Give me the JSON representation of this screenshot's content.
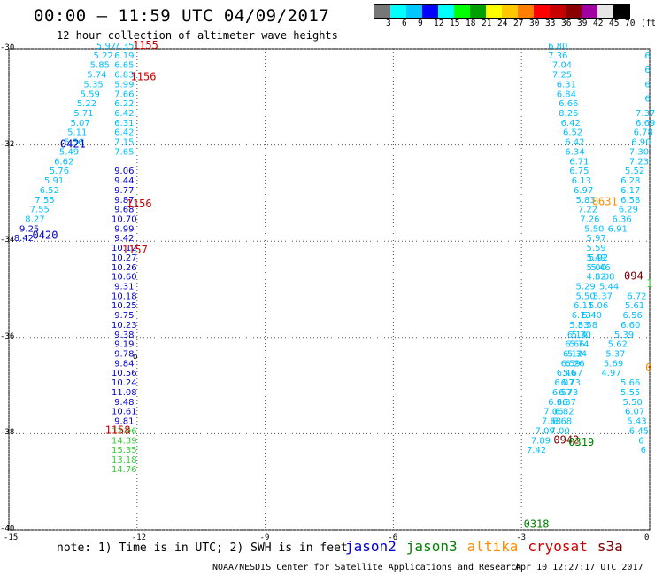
{
  "title": "00:00 – 11:59 UTC 04/09/2017",
  "subtitle": "12 hour collection of altimeter wave heights",
  "color_scale": {
    "labels": [
      "3",
      "6",
      "9",
      "12",
      "15",
      "18",
      "21",
      "24",
      "27",
      "30",
      "33",
      "36",
      "39",
      "42",
      "45",
      "70",
      "(ft)"
    ],
    "colors": [
      "#777777",
      "#00ffff",
      "#00c8ff",
      "#0000ff",
      "#00ffff",
      "#00ff00",
      "#00a000",
      "#ffff00",
      "#ffc800",
      "#ff8000",
      "#ff0000",
      "#c80000",
      "#8b0000",
      "#a000a0",
      "#e6e6e6",
      "#000000"
    ]
  },
  "axes": {
    "x_ticks": [
      "-15",
      "-12",
      "-9",
      "-6",
      "-3",
      "0"
    ],
    "y_ticks": [
      "-30",
      "-32",
      "-34",
      "-36",
      "-38",
      "-40"
    ]
  },
  "note": "note: 1) Time is in UTC; 2) SWH is in feet",
  "satellites": [
    {
      "name": "jason2",
      "color": "#0000cc"
    },
    {
      "name": "jason3",
      "color": "#008000"
    },
    {
      "name": "altika",
      "color": "#ff8c00"
    },
    {
      "name": "cryosat",
      "color": "#cc0000"
    },
    {
      "name": "s3a",
      "color": "#800000"
    }
  ],
  "footer_left": "NOAA/NESDIS Center for Satellite Applications and Research",
  "footer_right": "Apr 10 12:27:17 UTC 2017",
  "chart_data": {
    "type": "scatter",
    "title": "00:00 – 11:59 UTC 04/09/2017",
    "subtitle": "12 hour collection of altimeter wave heights",
    "xlim": [
      -15,
      0
    ],
    "ylim": [
      -40,
      -30
    ],
    "grid": true,
    "colors": {
      "cyan": "#00bfff",
      "blue": "#0000cc",
      "green": "#33cc33",
      "red": "#cc0000",
      "darkred": "#800000",
      "orange": "#ff8c00",
      "darkgreen": "#008000",
      "black": "#000000"
    },
    "times": [
      {
        "label": "1155",
        "x": -12.1,
        "y": -30.0,
        "color": "red"
      },
      {
        "label": "1156",
        "x": -12.15,
        "y": -30.65,
        "color": "red"
      },
      {
        "label": "0421",
        "x": -13.8,
        "y": -32.05,
        "color": "blue"
      },
      {
        "label": "1156",
        "x": -12.25,
        "y": -33.3,
        "color": "red"
      },
      {
        "label": "0420",
        "x": -14.45,
        "y": -33.95,
        "color": "blue"
      },
      {
        "label": "1157",
        "x": -12.35,
        "y": -34.25,
        "color": "red"
      },
      {
        "label": "1158",
        "x": -12.75,
        "y": -38.0,
        "color": "red"
      },
      {
        "label": "0631",
        "x": -1.35,
        "y": -33.25,
        "color": "orange"
      },
      {
        "label": "094",
        "x": -0.6,
        "y": -34.8,
        "color": "darkred"
      },
      {
        "label": "0",
        "x": -0.1,
        "y": -36.7,
        "color": "orange"
      },
      {
        "label": "0942",
        "x": -2.25,
        "y": -38.2,
        "color": "darkred"
      },
      {
        "label": "0319",
        "x": -1.9,
        "y": -38.25,
        "color": "darkgreen"
      },
      {
        "label": "0318",
        "x": -2.95,
        "y": -39.95,
        "color": "darkgreen"
      },
      {
        "label": "1",
        "x": -0.08,
        "y": -34.95,
        "color": "green"
      }
    ],
    "tracks": [
      {
        "name": "track-a",
        "color": "cyan",
        "points": [
          {
            "x": -12.72,
            "y": -30.0,
            "v": "5.97"
          },
          {
            "x": -12.79,
            "y": -30.2,
            "v": "5.22"
          },
          {
            "x": -12.87,
            "y": -30.4,
            "v": "5.85"
          },
          {
            "x": -12.94,
            "y": -30.6,
            "v": "5.74"
          },
          {
            "x": -13.02,
            "y": -30.8,
            "v": "5.35"
          },
          {
            "x": -13.1,
            "y": -31.0,
            "v": "5.59"
          },
          {
            "x": -13.18,
            "y": -31.2,
            "v": "5.22"
          },
          {
            "x": -13.25,
            "y": -31.4,
            "v": "5.71"
          },
          {
            "x": -13.33,
            "y": -31.6,
            "v": "5.07"
          },
          {
            "x": -13.4,
            "y": -31.8,
            "v": "5.11"
          },
          {
            "x": -13.48,
            "y": -32.0,
            "v": "5.56"
          },
          {
            "x": -13.59,
            "y": -32.2,
            "v": "5.49"
          },
          {
            "x": -13.71,
            "y": -32.4,
            "v": "6.62"
          },
          {
            "x": -13.82,
            "y": -32.6,
            "v": "5.76"
          },
          {
            "x": -13.94,
            "y": -32.8,
            "v": "5.91"
          },
          {
            "x": -14.05,
            "y": -33.0,
            "v": "6.52"
          },
          {
            "x": -14.16,
            "y": -33.2,
            "v": "7.55"
          },
          {
            "x": -14.28,
            "y": -33.4,
            "v": "7.55"
          },
          {
            "x": -14.39,
            "y": -33.6,
            "v": "8.27"
          }
        ]
      },
      {
        "name": "track-a-blue",
        "color": "blue",
        "points": [
          {
            "x": -14.52,
            "y": -33.8,
            "v": "9.25"
          },
          {
            "x": -14.65,
            "y": -34.0,
            "v": "8.42"
          }
        ]
      },
      {
        "name": "track-b",
        "color": "cyan",
        "points": [
          {
            "x": -12.3,
            "y": -30.0,
            "v": "7.35"
          },
          {
            "x": -12.3,
            "y": -30.2,
            "v": "6.19"
          },
          {
            "x": -12.3,
            "y": -30.4,
            "v": "6.65"
          },
          {
            "x": -12.3,
            "y": -30.6,
            "v": "6.83"
          },
          {
            "x": -12.3,
            "y": -30.8,
            "v": "5.99"
          },
          {
            "x": -12.3,
            "y": -31.0,
            "v": "7.66"
          },
          {
            "x": -12.3,
            "y": -31.2,
            "v": "6.22"
          },
          {
            "x": -12.3,
            "y": -31.4,
            "v": "6.42"
          },
          {
            "x": -12.3,
            "y": -31.6,
            "v": "6.31"
          },
          {
            "x": -12.3,
            "y": -31.8,
            "v": "6.42"
          },
          {
            "x": -12.3,
            "y": -32.0,
            "v": "7.15"
          },
          {
            "x": -12.3,
            "y": -32.2,
            "v": "7.65"
          }
        ]
      },
      {
        "name": "track-b-blue",
        "color": "blue",
        "points": [
          {
            "x": -12.3,
            "y": -32.6,
            "v": "9.06"
          },
          {
            "x": -12.3,
            "y": -32.8,
            "v": "9.44"
          },
          {
            "x": -12.3,
            "y": -33.0,
            "v": "9.77"
          },
          {
            "x": -12.3,
            "y": -33.2,
            "v": "9.87"
          },
          {
            "x": -12.3,
            "y": -33.4,
            "v": "9.68"
          },
          {
            "x": -12.3,
            "y": -33.6,
            "v": "10.70"
          },
          {
            "x": -12.3,
            "y": -33.8,
            "v": "9.99"
          },
          {
            "x": -12.3,
            "y": -34.0,
            "v": "9.42"
          },
          {
            "x": -12.3,
            "y": -34.2,
            "v": "10.12"
          },
          {
            "x": -12.3,
            "y": -34.4,
            "v": "10.27"
          },
          {
            "x": -12.3,
            "y": -34.6,
            "v": "10.26"
          },
          {
            "x": -12.3,
            "y": -34.8,
            "v": "10.60"
          },
          {
            "x": -12.3,
            "y": -35.0,
            "v": "9.31"
          },
          {
            "x": -12.3,
            "y": -35.2,
            "v": "10.18"
          },
          {
            "x": -12.3,
            "y": -35.4,
            "v": "10.25"
          },
          {
            "x": -12.3,
            "y": -35.6,
            "v": "9.75"
          },
          {
            "x": -12.3,
            "y": -35.8,
            "v": "10.23"
          },
          {
            "x": -12.3,
            "y": -36.0,
            "v": "9.38"
          },
          {
            "x": -12.3,
            "y": -36.2,
            "v": "9.19"
          },
          {
            "x": -12.3,
            "y": -36.4,
            "v": "9.78"
          },
          {
            "x": -12.3,
            "y": -36.6,
            "v": "9.84"
          },
          {
            "x": -12.3,
            "y": -36.8,
            "v": "10.56"
          },
          {
            "x": -12.3,
            "y": -37.0,
            "v": "10.24"
          },
          {
            "x": -12.3,
            "y": -37.2,
            "v": "11.08"
          },
          {
            "x": -12.3,
            "y": -37.4,
            "v": "9.48"
          },
          {
            "x": -12.3,
            "y": -37.6,
            "v": "10.61"
          },
          {
            "x": -12.3,
            "y": -37.8,
            "v": "9.81"
          }
        ]
      },
      {
        "name": "track-b-green",
        "color": "green",
        "points": [
          {
            "x": -12.3,
            "y": -38.0,
            "v": "12.96"
          },
          {
            "x": -12.3,
            "y": -38.2,
            "v": "14.39"
          },
          {
            "x": -12.3,
            "y": -38.4,
            "v": "15.35"
          },
          {
            "x": -12.3,
            "y": -38.6,
            "v": "13.18"
          },
          {
            "x": -12.3,
            "y": -38.8,
            "v": "14.76"
          }
        ]
      },
      {
        "name": "track-c",
        "color": "cyan",
        "points": [
          {
            "x": -2.15,
            "y": -30.0,
            "v": "6.80"
          },
          {
            "x": -2.15,
            "y": -30.2,
            "v": "7.36"
          },
          {
            "x": -2.05,
            "y": -30.4,
            "v": "7.04"
          },
          {
            "x": -2.05,
            "y": -30.6,
            "v": "7.25"
          },
          {
            "x": -1.95,
            "y": -30.8,
            "v": "6.31"
          },
          {
            "x": -1.95,
            "y": -31.0,
            "v": "6.84"
          },
          {
            "x": -1.9,
            "y": -31.2,
            "v": "6.66"
          },
          {
            "x": -1.9,
            "y": -31.4,
            "v": "8.26"
          },
          {
            "x": -1.85,
            "y": -31.6,
            "v": "6.42"
          },
          {
            "x": -1.8,
            "y": -31.8,
            "v": "6.52"
          },
          {
            "x": -1.75,
            "y": -32.0,
            "v": "6.42"
          },
          {
            "x": -1.75,
            "y": -32.2,
            "v": "6.34"
          },
          {
            "x": -1.65,
            "y": -32.4,
            "v": "6.71"
          },
          {
            "x": -1.65,
            "y": -32.6,
            "v": "6.75"
          },
          {
            "x": -1.6,
            "y": -32.8,
            "v": "6.13"
          },
          {
            "x": -1.55,
            "y": -33.0,
            "v": "6.97"
          },
          {
            "x": -1.5,
            "y": -33.2,
            "v": "5.83"
          },
          {
            "x": -1.45,
            "y": -33.4,
            "v": "7.22"
          },
          {
            "x": -1.4,
            "y": -33.6,
            "v": "7.26"
          },
          {
            "x": -1.3,
            "y": -33.8,
            "v": "5.50"
          },
          {
            "x": -1.25,
            "y": -34.0,
            "v": "5.97"
          },
          {
            "x": -1.25,
            "y": -34.2,
            "v": "5.59"
          },
          {
            "x": -1.25,
            "y": -34.4,
            "v": "5.49"
          },
          {
            "x": -1.25,
            "y": -34.6,
            "v": "5.00"
          },
          {
            "x": -1.25,
            "y": -34.8,
            "v": "4.82"
          },
          {
            "x": -1.5,
            "y": -35.0,
            "v": "5.29"
          },
          {
            "x": -1.5,
            "y": -35.2,
            "v": "5.50"
          },
          {
            "x": -1.55,
            "y": -35.4,
            "v": "6.11"
          },
          {
            "x": -1.6,
            "y": -35.6,
            "v": "6.13"
          },
          {
            "x": -1.65,
            "y": -35.8,
            "v": "5.83"
          },
          {
            "x": -1.7,
            "y": -36.0,
            "v": "6.14"
          },
          {
            "x": -1.75,
            "y": -36.2,
            "v": "6.66"
          },
          {
            "x": -1.8,
            "y": -36.4,
            "v": "6.12"
          },
          {
            "x": -1.85,
            "y": -36.6,
            "v": "6.59"
          },
          {
            "x": -1.95,
            "y": -36.8,
            "v": "6.46"
          },
          {
            "x": -2.0,
            "y": -37.0,
            "v": "6.07"
          },
          {
            "x": -2.05,
            "y": -37.2,
            "v": "6.57"
          },
          {
            "x": -2.15,
            "y": -37.4,
            "v": "6.96"
          },
          {
            "x": -2.25,
            "y": -37.6,
            "v": "7.06"
          },
          {
            "x": -2.3,
            "y": -37.8,
            "v": "7.68"
          },
          {
            "x": -2.45,
            "y": -38.0,
            "v": "7.09"
          },
          {
            "x": -2.55,
            "y": -38.2,
            "v": "7.89"
          },
          {
            "x": -2.65,
            "y": -38.4,
            "v": "7.42"
          }
        ]
      },
      {
        "name": "track-d",
        "color": "cyan",
        "points": [
          {
            "x": -0.05,
            "y": -30.2,
            "v": "6"
          },
          {
            "x": -0.05,
            "y": -30.5,
            "v": "6"
          },
          {
            "x": -0.05,
            "y": -30.8,
            "v": "6"
          },
          {
            "x": -0.05,
            "y": -31.1,
            "v": "6"
          },
          {
            "x": -0.1,
            "y": -31.4,
            "v": "7.37"
          },
          {
            "x": -0.1,
            "y": -31.6,
            "v": "6.69"
          },
          {
            "x": -0.15,
            "y": -31.8,
            "v": "6.78"
          },
          {
            "x": -0.2,
            "y": -32.0,
            "v": "6.90"
          },
          {
            "x": -0.25,
            "y": -32.2,
            "v": "7.30"
          },
          {
            "x": -0.25,
            "y": -32.4,
            "v": "7.23"
          },
          {
            "x": -0.35,
            "y": -32.6,
            "v": "5.52"
          },
          {
            "x": -0.45,
            "y": -32.8,
            "v": "6.28"
          },
          {
            "x": -0.45,
            "y": -33.0,
            "v": "6.17"
          },
          {
            "x": -0.45,
            "y": -33.2,
            "v": "6.58"
          },
          {
            "x": -0.5,
            "y": -33.4,
            "v": "6.29"
          },
          {
            "x": -0.65,
            "y": -33.6,
            "v": "6.36"
          },
          {
            "x": -0.75,
            "y": -33.8,
            "v": "6.91"
          },
          {
            "x": -0.3,
            "y": -35.2,
            "v": "6.72"
          },
          {
            "x": -0.35,
            "y": -35.4,
            "v": "5.61"
          },
          {
            "x": -0.4,
            "y": -35.6,
            "v": "6.56"
          },
          {
            "x": -0.45,
            "y": -35.8,
            "v": "6.60"
          },
          {
            "x": -0.6,
            "y": -36.0,
            "v": "5.39"
          },
          {
            "x": -0.75,
            "y": -36.2,
            "v": "5.62"
          },
          {
            "x": -0.8,
            "y": -36.4,
            "v": "5.37"
          },
          {
            "x": -0.85,
            "y": -36.6,
            "v": "5.69"
          },
          {
            "x": -0.9,
            "y": -36.8,
            "v": "4.97"
          },
          {
            "x": -0.45,
            "y": -37.0,
            "v": "5.66"
          },
          {
            "x": -0.45,
            "y": -37.2,
            "v": "5.55"
          },
          {
            "x": -0.4,
            "y": -37.4,
            "v": "5.50"
          },
          {
            "x": -0.35,
            "y": -37.6,
            "v": "6.07"
          },
          {
            "x": -0.3,
            "y": -37.8,
            "v": "5.43"
          },
          {
            "x": -0.25,
            "y": -38.0,
            "v": "6.45"
          },
          {
            "x": -0.2,
            "y": -38.2,
            "v": "6"
          },
          {
            "x": -0.15,
            "y": -38.4,
            "v": "6"
          }
        ]
      },
      {
        "name": "track-e",
        "color": "cyan",
        "points": [
          {
            "x": -1.2,
            "y": -34.4,
            "v": "5.92"
          },
          {
            "x": -1.15,
            "y": -34.6,
            "v": "5.46"
          },
          {
            "x": -1.05,
            "y": -34.8,
            "v": "5.08"
          },
          {
            "x": -0.95,
            "y": -35.0,
            "v": "5.44"
          },
          {
            "x": -1.1,
            "y": -35.2,
            "v": "5.37"
          },
          {
            "x": -1.2,
            "y": -35.4,
            "v": "5.06"
          },
          {
            "x": -1.35,
            "y": -35.6,
            "v": "5.40"
          },
          {
            "x": -1.45,
            "y": -35.8,
            "v": "5.58"
          },
          {
            "x": -1.6,
            "y": -36.0,
            "v": "5.30"
          },
          {
            "x": -1.65,
            "y": -36.2,
            "v": "5.74"
          },
          {
            "x": -1.7,
            "y": -36.4,
            "v": "5.34"
          },
          {
            "x": -1.75,
            "y": -36.6,
            "v": "6.26"
          },
          {
            "x": -1.8,
            "y": -36.8,
            "v": "5.67"
          },
          {
            "x": -1.85,
            "y": -37.0,
            "v": "6.73"
          },
          {
            "x": -1.9,
            "y": -37.2,
            "v": "6.73"
          },
          {
            "x": -1.95,
            "y": -37.4,
            "v": "6.87"
          },
          {
            "x": -2.0,
            "y": -37.6,
            "v": "6.82"
          },
          {
            "x": -2.05,
            "y": -37.8,
            "v": "6.68"
          },
          {
            "x": -2.1,
            "y": -38.0,
            "v": "7.00"
          }
        ]
      }
    ],
    "marker": {
      "label": "o",
      "x": -12.1,
      "y": -36.45
    }
  }
}
